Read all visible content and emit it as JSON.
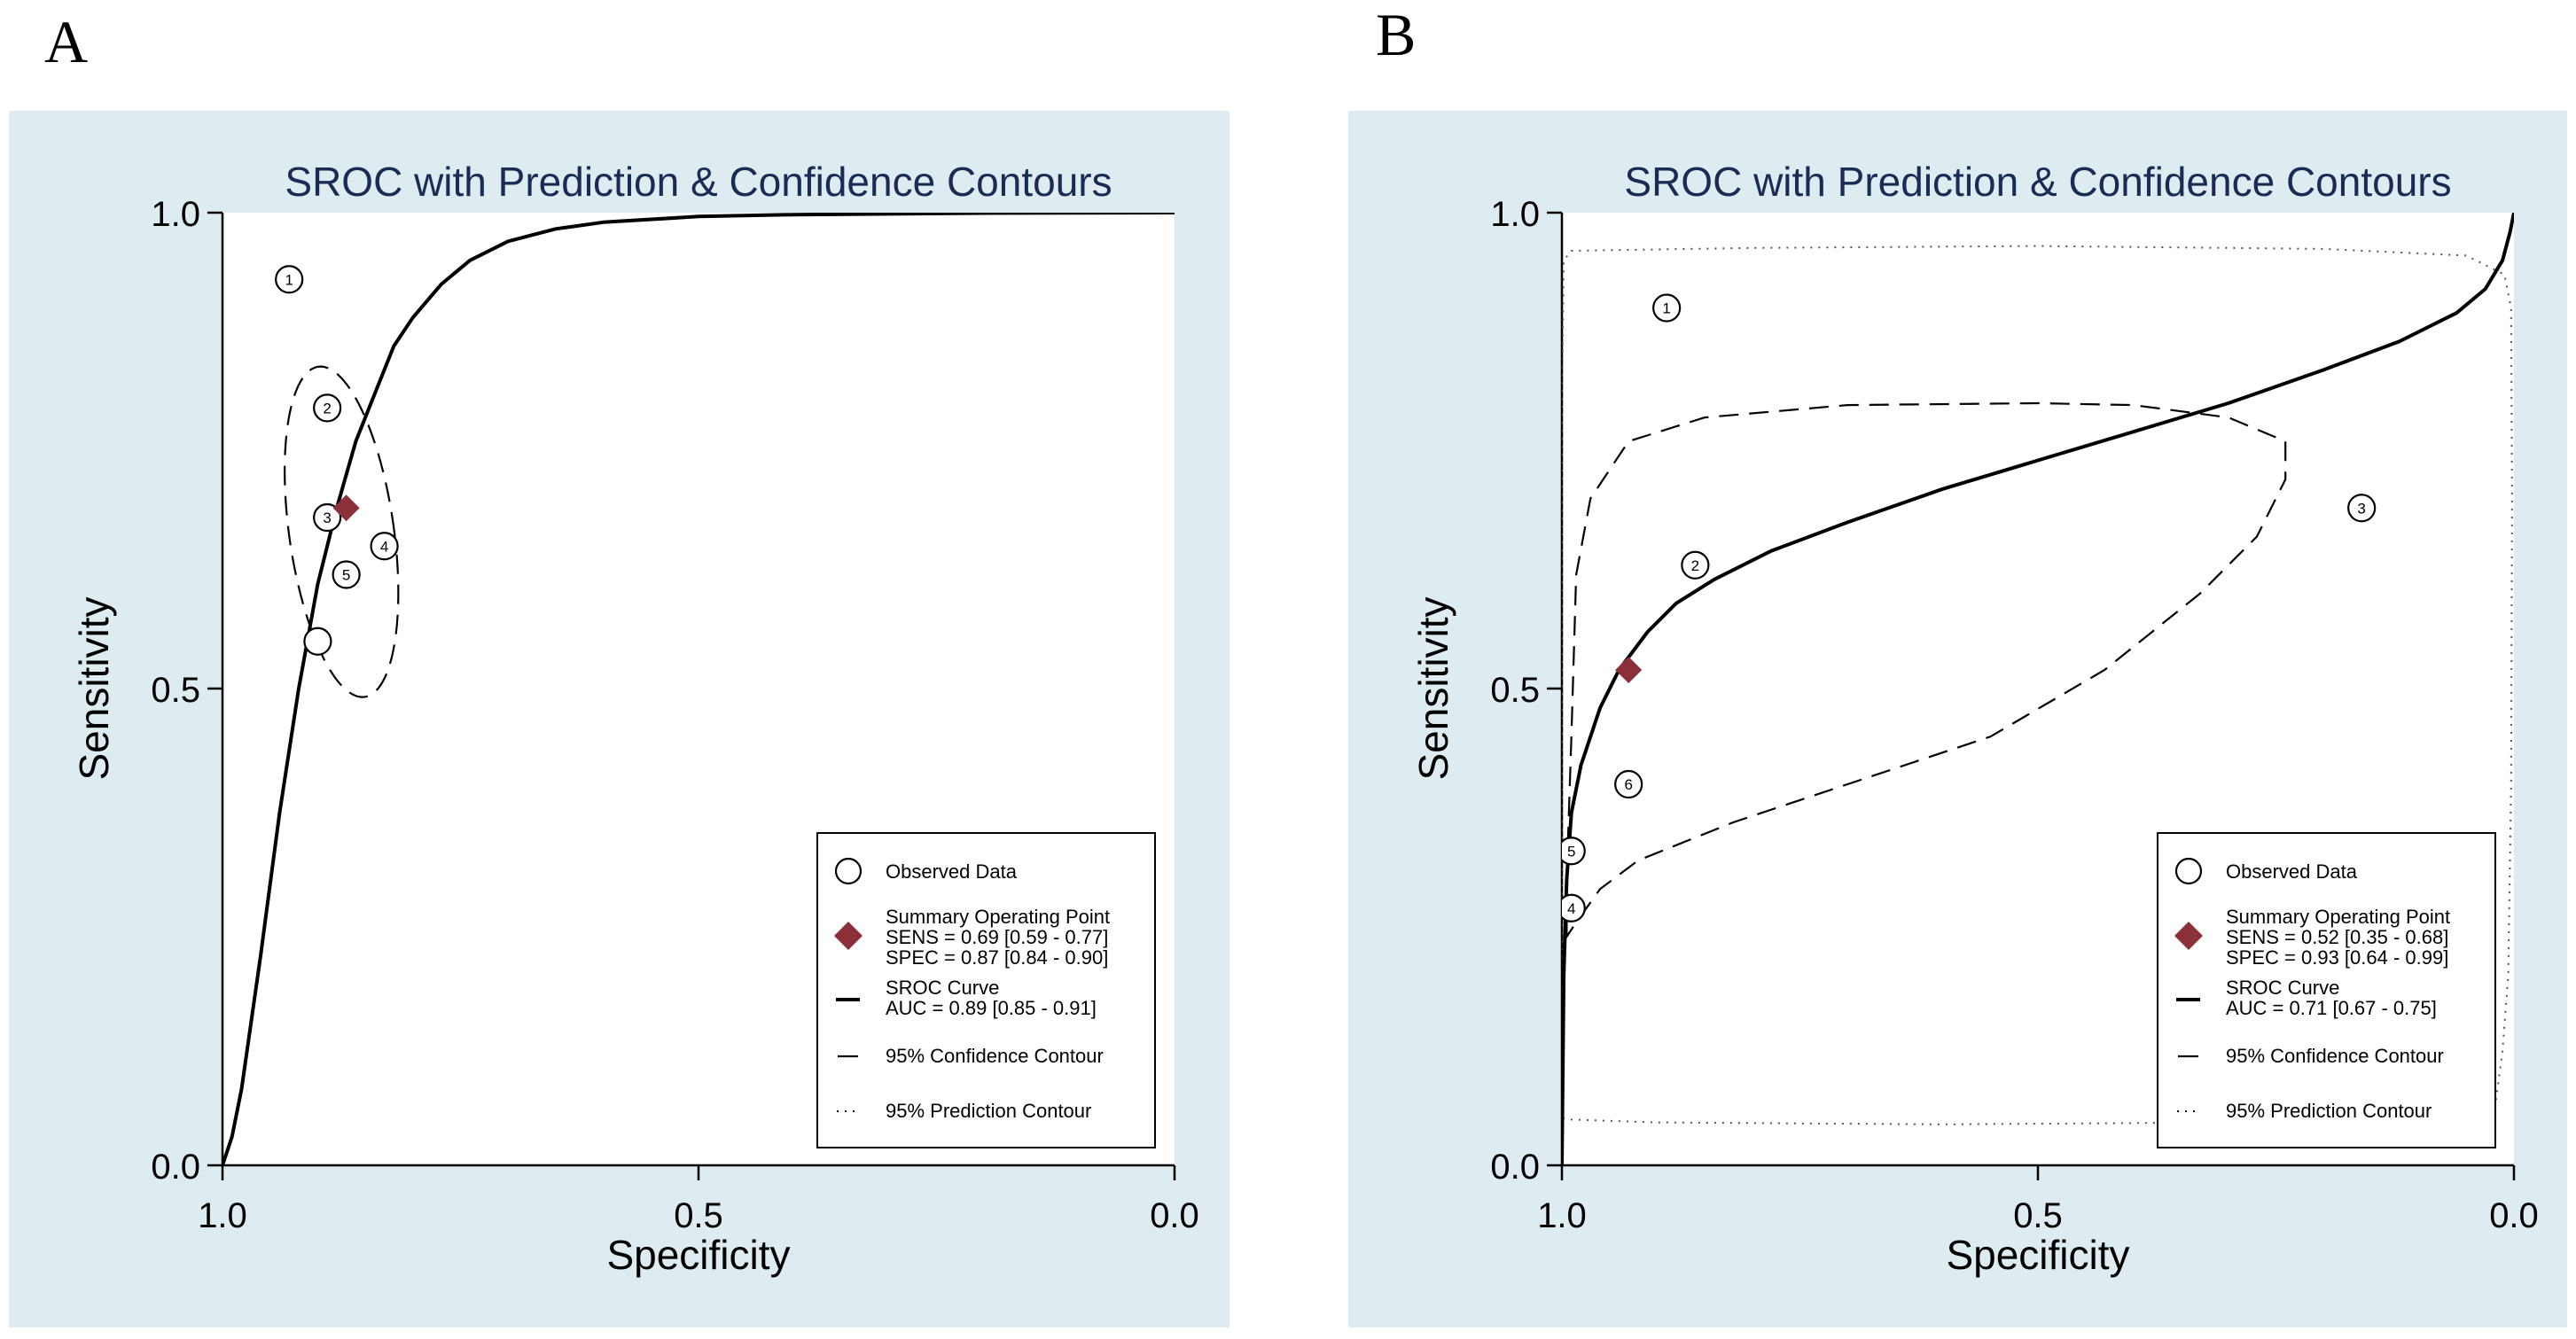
{
  "panels": [
    {
      "letter": "A",
      "title": "SROC with Prediction & Confidence Contours",
      "xlabel": "Specificity",
      "ylabel": "Sensitivity",
      "xticks": [
        "1.0",
        "0.5",
        "0.0"
      ],
      "yticks": [
        "0.0",
        "0.5",
        "1.0"
      ],
      "legend": {
        "observed": "Observed Data",
        "summary_title": "Summary Operating Point",
        "summary_sens": "SENS = 0.69 [0.59 - 0.77]",
        "summary_spec": "SPEC = 0.87 [0.84 - 0.90]",
        "sroc_title": "SROC Curve",
        "sroc_auc": "AUC = 0.89 [0.85 - 0.91]",
        "confidence": "95% Confidence Contour",
        "prediction": "95% Prediction Contour"
      },
      "colors": {
        "background": "#deebf0",
        "summary_point": "#8b3038"
      }
    },
    {
      "letter": "B",
      "title": "SROC with Prediction & Confidence Contours",
      "xlabel": "Specificity",
      "ylabel": "Sensitivity",
      "xticks": [
        "1.0",
        "0.5",
        "0.0"
      ],
      "yticks": [
        "0.0",
        "0.5",
        "1.0"
      ],
      "legend": {
        "observed": "Observed Data",
        "summary_title": "Summary Operating Point",
        "summary_sens": "SENS = 0.52 [0.35 - 0.68]",
        "summary_spec": "SPEC = 0.93 [0.64 - 0.99]",
        "sroc_title": "SROC Curve",
        "sroc_auc": "AUC = 0.71 [0.67 - 0.75]",
        "confidence": "95% Confidence Contour",
        "prediction": "95% Prediction Contour"
      },
      "colors": {
        "background": "#deebf0",
        "summary_point": "#8b3038"
      }
    }
  ],
  "chart_data": [
    {
      "type": "scatter",
      "title": "SROC with Prediction & Confidence Contours",
      "xlabel": "Specificity",
      "ylabel": "Sensitivity",
      "x_direction": "reversed",
      "xlim": [
        1.0,
        0.0
      ],
      "ylim": [
        0.0,
        1.0
      ],
      "legend_position": "bottom-right",
      "observed": [
        {
          "label": "1",
          "spec": 0.93,
          "sens": 0.93
        },
        {
          "label": "2",
          "spec": 0.89,
          "sens": 0.795
        },
        {
          "label": "3",
          "spec": 0.89,
          "sens": 0.68
        },
        {
          "label": "4",
          "spec": 0.83,
          "sens": 0.65
        },
        {
          "label": "5",
          "spec": 0.87,
          "sens": 0.62
        },
        {
          "label": "",
          "spec": 0.9,
          "sens": 0.55
        }
      ],
      "summary_point": {
        "spec": 0.87,
        "sens": 0.69
      },
      "sroc_curve": [
        [
          1.0,
          0.0
        ],
        [
          0.99,
          0.03
        ],
        [
          0.98,
          0.08
        ],
        [
          0.96,
          0.22
        ],
        [
          0.94,
          0.37
        ],
        [
          0.92,
          0.5
        ],
        [
          0.9,
          0.61
        ],
        [
          0.88,
          0.69
        ],
        [
          0.86,
          0.76
        ],
        [
          0.84,
          0.81
        ],
        [
          0.82,
          0.86
        ],
        [
          0.8,
          0.89
        ],
        [
          0.77,
          0.925
        ],
        [
          0.74,
          0.95
        ],
        [
          0.7,
          0.97
        ],
        [
          0.65,
          0.983
        ],
        [
          0.6,
          0.99
        ],
        [
          0.5,
          0.996
        ],
        [
          0.4,
          0.998
        ],
        [
          0.2,
          0.9995
        ],
        [
          0.0,
          1.0
        ]
      ],
      "confidence_contour": {
        "center_spec": 0.875,
        "center_sens": 0.665,
        "semi_axis_spec": 0.055,
        "semi_axis_sens": 0.175,
        "tilt_deg": -8
      },
      "prediction_contour": null
    },
    {
      "type": "scatter",
      "title": "SROC with Prediction & Confidence Contours",
      "xlabel": "Specificity",
      "ylabel": "Sensitivity",
      "x_direction": "reversed",
      "xlim": [
        1.0,
        0.0
      ],
      "ylim": [
        0.0,
        1.0
      ],
      "legend_position": "bottom-right",
      "observed": [
        {
          "label": "1",
          "spec": 0.89,
          "sens": 0.9
        },
        {
          "label": "2",
          "spec": 0.86,
          "sens": 0.63
        },
        {
          "label": "3",
          "spec": 0.16,
          "sens": 0.69
        },
        {
          "label": "4",
          "spec": 0.99,
          "sens": 0.27
        },
        {
          "label": "5",
          "spec": 0.99,
          "sens": 0.33
        },
        {
          "label": "6",
          "spec": 0.93,
          "sens": 0.4
        }
      ],
      "summary_point": {
        "spec": 0.93,
        "sens": 0.52
      },
      "sroc_curve": [
        [
          1.0,
          0.0
        ],
        [
          0.998,
          0.2
        ],
        [
          0.995,
          0.3
        ],
        [
          0.99,
          0.37
        ],
        [
          0.98,
          0.42
        ],
        [
          0.96,
          0.48
        ],
        [
          0.94,
          0.52
        ],
        [
          0.91,
          0.56
        ],
        [
          0.88,
          0.59
        ],
        [
          0.84,
          0.615
        ],
        [
          0.78,
          0.645
        ],
        [
          0.7,
          0.675
        ],
        [
          0.6,
          0.71
        ],
        [
          0.5,
          0.74
        ],
        [
          0.4,
          0.77
        ],
        [
          0.3,
          0.8
        ],
        [
          0.2,
          0.835
        ],
        [
          0.12,
          0.865
        ],
        [
          0.06,
          0.895
        ],
        [
          0.03,
          0.92
        ],
        [
          0.012,
          0.95
        ],
        [
          0.004,
          0.98
        ],
        [
          0.0,
          1.0
        ]
      ],
      "confidence_contour": [
        [
          0.995,
          0.24
        ],
        [
          0.995,
          0.3
        ],
        [
          0.99,
          0.45
        ],
        [
          0.985,
          0.62
        ],
        [
          0.97,
          0.7
        ],
        [
          0.93,
          0.76
        ],
        [
          0.85,
          0.785
        ],
        [
          0.7,
          0.798
        ],
        [
          0.5,
          0.8
        ],
        [
          0.4,
          0.798
        ],
        [
          0.3,
          0.785
        ],
        [
          0.24,
          0.76
        ],
        [
          0.24,
          0.72
        ],
        [
          0.27,
          0.66
        ],
        [
          0.33,
          0.6
        ],
        [
          0.43,
          0.52
        ],
        [
          0.55,
          0.45
        ],
        [
          0.7,
          0.4
        ],
        [
          0.82,
          0.36
        ],
        [
          0.92,
          0.32
        ],
        [
          0.96,
          0.29
        ],
        [
          0.985,
          0.255
        ],
        [
          0.995,
          0.24
        ]
      ],
      "prediction_contour": [
        [
          1.0,
          0.05
        ],
        [
          1.0,
          0.2
        ],
        [
          1.0,
          0.5
        ],
        [
          1.0,
          0.8
        ],
        [
          0.998,
          0.95
        ],
        [
          0.99,
          0.96
        ],
        [
          0.8,
          0.963
        ],
        [
          0.5,
          0.965
        ],
        [
          0.2,
          0.962
        ],
        [
          0.05,
          0.955
        ],
        [
          0.01,
          0.935
        ],
        [
          0.003,
          0.9
        ],
        [
          0.002,
          0.7
        ],
        [
          0.003,
          0.4
        ],
        [
          0.006,
          0.2
        ],
        [
          0.012,
          0.12
        ],
        [
          0.02,
          0.06
        ],
        [
          0.08,
          0.05
        ],
        [
          0.3,
          0.045
        ],
        [
          0.6,
          0.043
        ],
        [
          0.9,
          0.045
        ],
        [
          0.99,
          0.048
        ],
        [
          1.0,
          0.05
        ]
      ]
    }
  ]
}
